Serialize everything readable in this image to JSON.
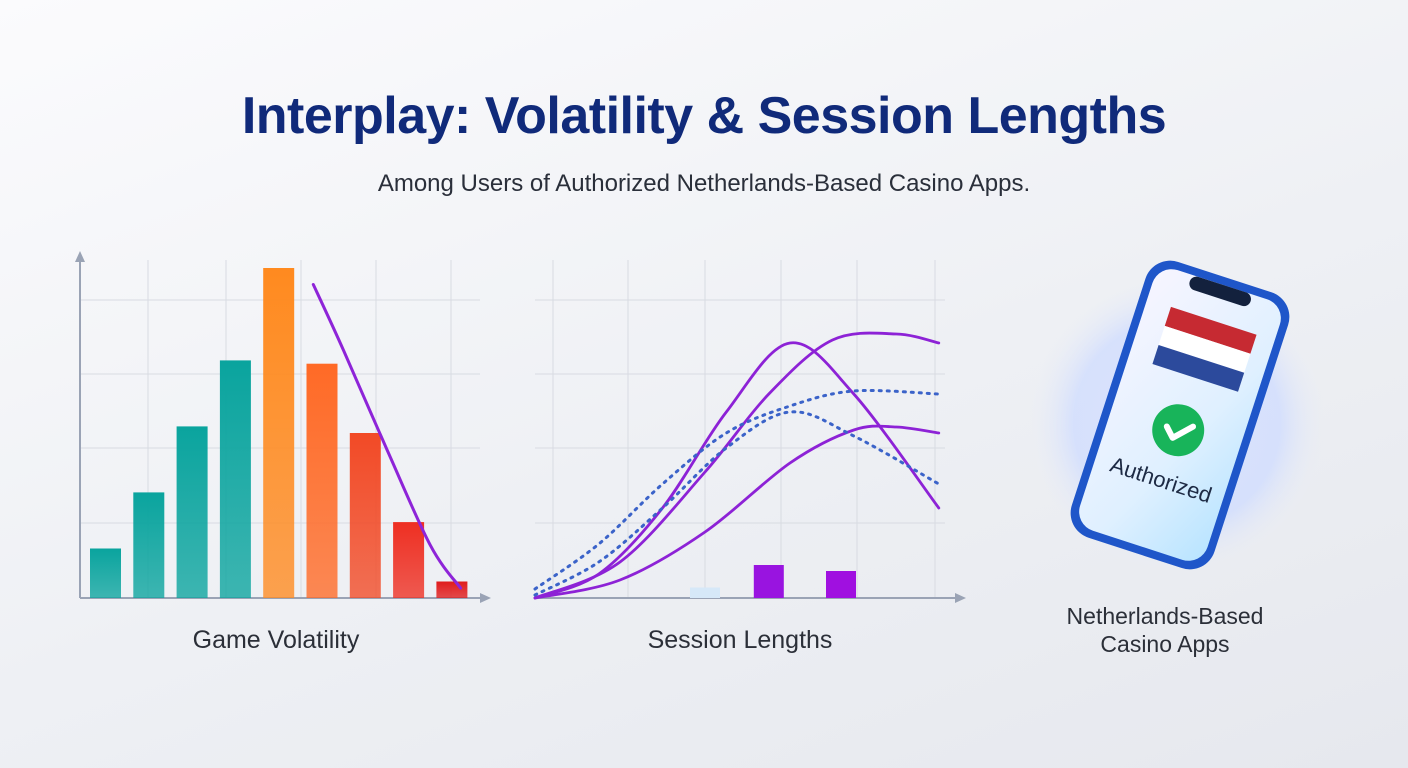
{
  "title": "Interplay: Volatility & Session Lengths",
  "subtitle": "Among Users of Authorized Netherlands-Based Casino Apps.",
  "chart_data": [
    {
      "type": "bar",
      "xlabel": "Game Volatility",
      "ylabel": "",
      "ylim": [
        0,
        100
      ],
      "grid": true,
      "colors": [
        "#0aa49e",
        "#0aa49e",
        "#0aa49e",
        "#0aa49e",
        "#ff8a1f",
        "#ff6a26",
        "#f24a26",
        "#ee2f22",
        "#e01c1c"
      ],
      "values": [
        15,
        32,
        52,
        72,
        100,
        71,
        50,
        23,
        5
      ],
      "overlay_curve": {
        "color": "#8e24d8",
        "x": [
          4.8,
          5.5,
          6.5,
          7.5,
          8.2
        ],
        "y": [
          95,
          75,
          45,
          16,
          3
        ]
      }
    },
    {
      "type": "line",
      "xlabel": "Session Lengths",
      "ylabel": "",
      "ylim": [
        0,
        100
      ],
      "xlim": [
        0,
        10
      ],
      "grid": true,
      "series": [
        {
          "style": "solid",
          "color": "#8d22d6",
          "x": [
            0,
            1.5,
            3,
            4.5,
            6,
            7.5,
            9.5
          ],
          "y": [
            0,
            8,
            30,
            62,
            85,
            68,
            30
          ]
        },
        {
          "style": "solid",
          "color": "#8d22d6",
          "x": [
            0,
            2,
            4,
            5.5,
            7,
            8.5,
            9.5
          ],
          "y": [
            0,
            12,
            42,
            68,
            86,
            88,
            85
          ]
        },
        {
          "style": "solid",
          "color": "#8d22d6",
          "x": [
            0,
            2,
            4,
            6,
            7.5,
            8.5,
            9.5
          ],
          "y": [
            0,
            6,
            22,
            45,
            56,
            57,
            55
          ]
        },
        {
          "style": "dotted",
          "color": "#3b63c9",
          "x": [
            0,
            1.5,
            3,
            4.5,
            6,
            7.5,
            9.5
          ],
          "y": [
            3,
            18,
            38,
            55,
            64,
            69,
            68
          ]
        },
        {
          "style": "dotted",
          "color": "#3b63c9",
          "x": [
            0,
            1.5,
            3,
            4.5,
            6,
            7.5,
            9.5
          ],
          "y": [
            1,
            12,
            30,
            50,
            62,
            54,
            38
          ]
        }
      ],
      "bars": [
        {
          "x": 4,
          "value": 3.5,
          "color": "#d6e8f8"
        },
        {
          "x": 5.5,
          "value": 11,
          "color": "#9914e0"
        },
        {
          "x": 7.2,
          "value": 9,
          "color": "#a010e0"
        }
      ]
    }
  ],
  "phone": {
    "badge_text": "Authorized",
    "caption_line1": "Netherlands-Based",
    "caption_line2": "Casino Apps",
    "flag_colors": [
      "#c62a32",
      "#ffffff",
      "#2c4a9c"
    ],
    "check_color": "#18b45a",
    "frame_color": "#1f56c9"
  }
}
